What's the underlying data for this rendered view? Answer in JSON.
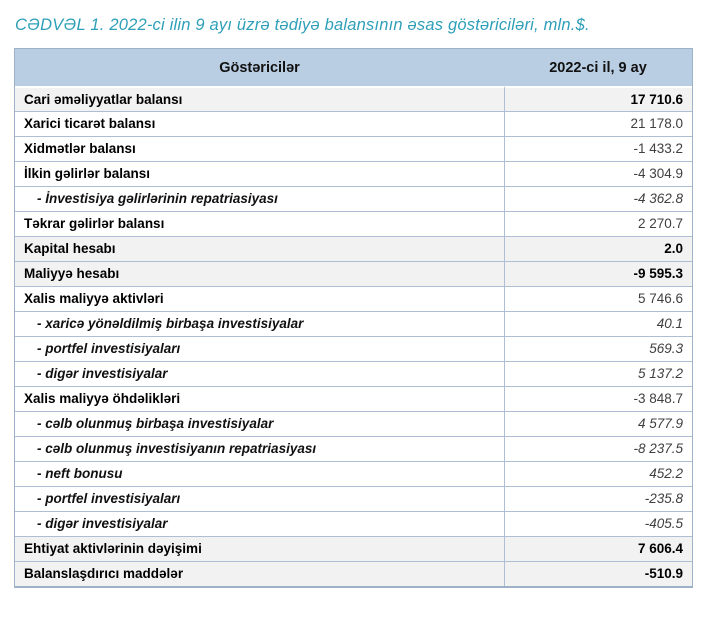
{
  "title": "CƏDVƏL 1. 2022-ci ilin 9 ayı üzrə tədiyə balansının əsas göstəriciləri, mln.$.",
  "colors": {
    "title_text": "#2e9fb8",
    "header_background": "#b9cde3",
    "cell_border": "#aebfd3",
    "shaded_row_background": "#f2f2f2",
    "value_text": "#404040"
  },
  "table": {
    "columns": [
      "Göstəricilər",
      "2022-ci il, 9 ay"
    ],
    "rows": [
      {
        "label": "Cari əməliyyatlar balansı",
        "value": "17 710.6",
        "style": "total"
      },
      {
        "label": "Xarici ticarət balansı",
        "value": "21 178.0",
        "style": "main"
      },
      {
        "label": "Xidmətlər balansı",
        "value": "-1 433.2",
        "style": "main"
      },
      {
        "label": "İlkin gəlirlər balansı",
        "value": "-4 304.9",
        "style": "main"
      },
      {
        "label": "- İnvestisiya gəlirlərinin repatriasiyası",
        "value": "-4 362.8",
        "style": "sub"
      },
      {
        "label": "Təkrar gəlirlər balansı",
        "value": "2 270.7",
        "style": "main"
      },
      {
        "label": "Kapital hesabı",
        "value": "2.0",
        "style": "total"
      },
      {
        "label": "Maliyyə hesabı",
        "value": "-9 595.3",
        "style": "total"
      },
      {
        "label": "Xalis maliyyə aktivləri",
        "value": "5 746.6",
        "style": "main"
      },
      {
        "label": "- xaricə yönəldilmiş birbaşa investisiyalar",
        "value": "40.1",
        "style": "sub"
      },
      {
        "label": "- portfel investisiyaları",
        "value": "569.3",
        "style": "sub"
      },
      {
        "label": "- digər investisiyalar",
        "value": "5 137.2",
        "style": "sub"
      },
      {
        "label": "Xalis maliyyə öhdəlikləri",
        "value": "-3 848.7",
        "style": "main"
      },
      {
        "label": "- cəlb olunmuş birbaşa investisiyalar",
        "value": "4 577.9",
        "style": "sub"
      },
      {
        "label": "- cəlb olunmuş investisiyanın repatriasiyası",
        "value": "-8 237.5",
        "style": "sub"
      },
      {
        "label": "- neft bonusu",
        "value": "452.2",
        "style": "sub"
      },
      {
        "label": "- portfel investisiyaları",
        "value": "-235.8",
        "style": "sub"
      },
      {
        "label": "- digər investisiyalar",
        "value": "-405.5",
        "style": "sub"
      },
      {
        "label": "Ehtiyat aktivlərinin dəyişimi",
        "value": "7 606.4",
        "style": "total"
      },
      {
        "label": "Balanslaşdırıcı maddələr",
        "value": "-510.9",
        "style": "total"
      }
    ]
  }
}
